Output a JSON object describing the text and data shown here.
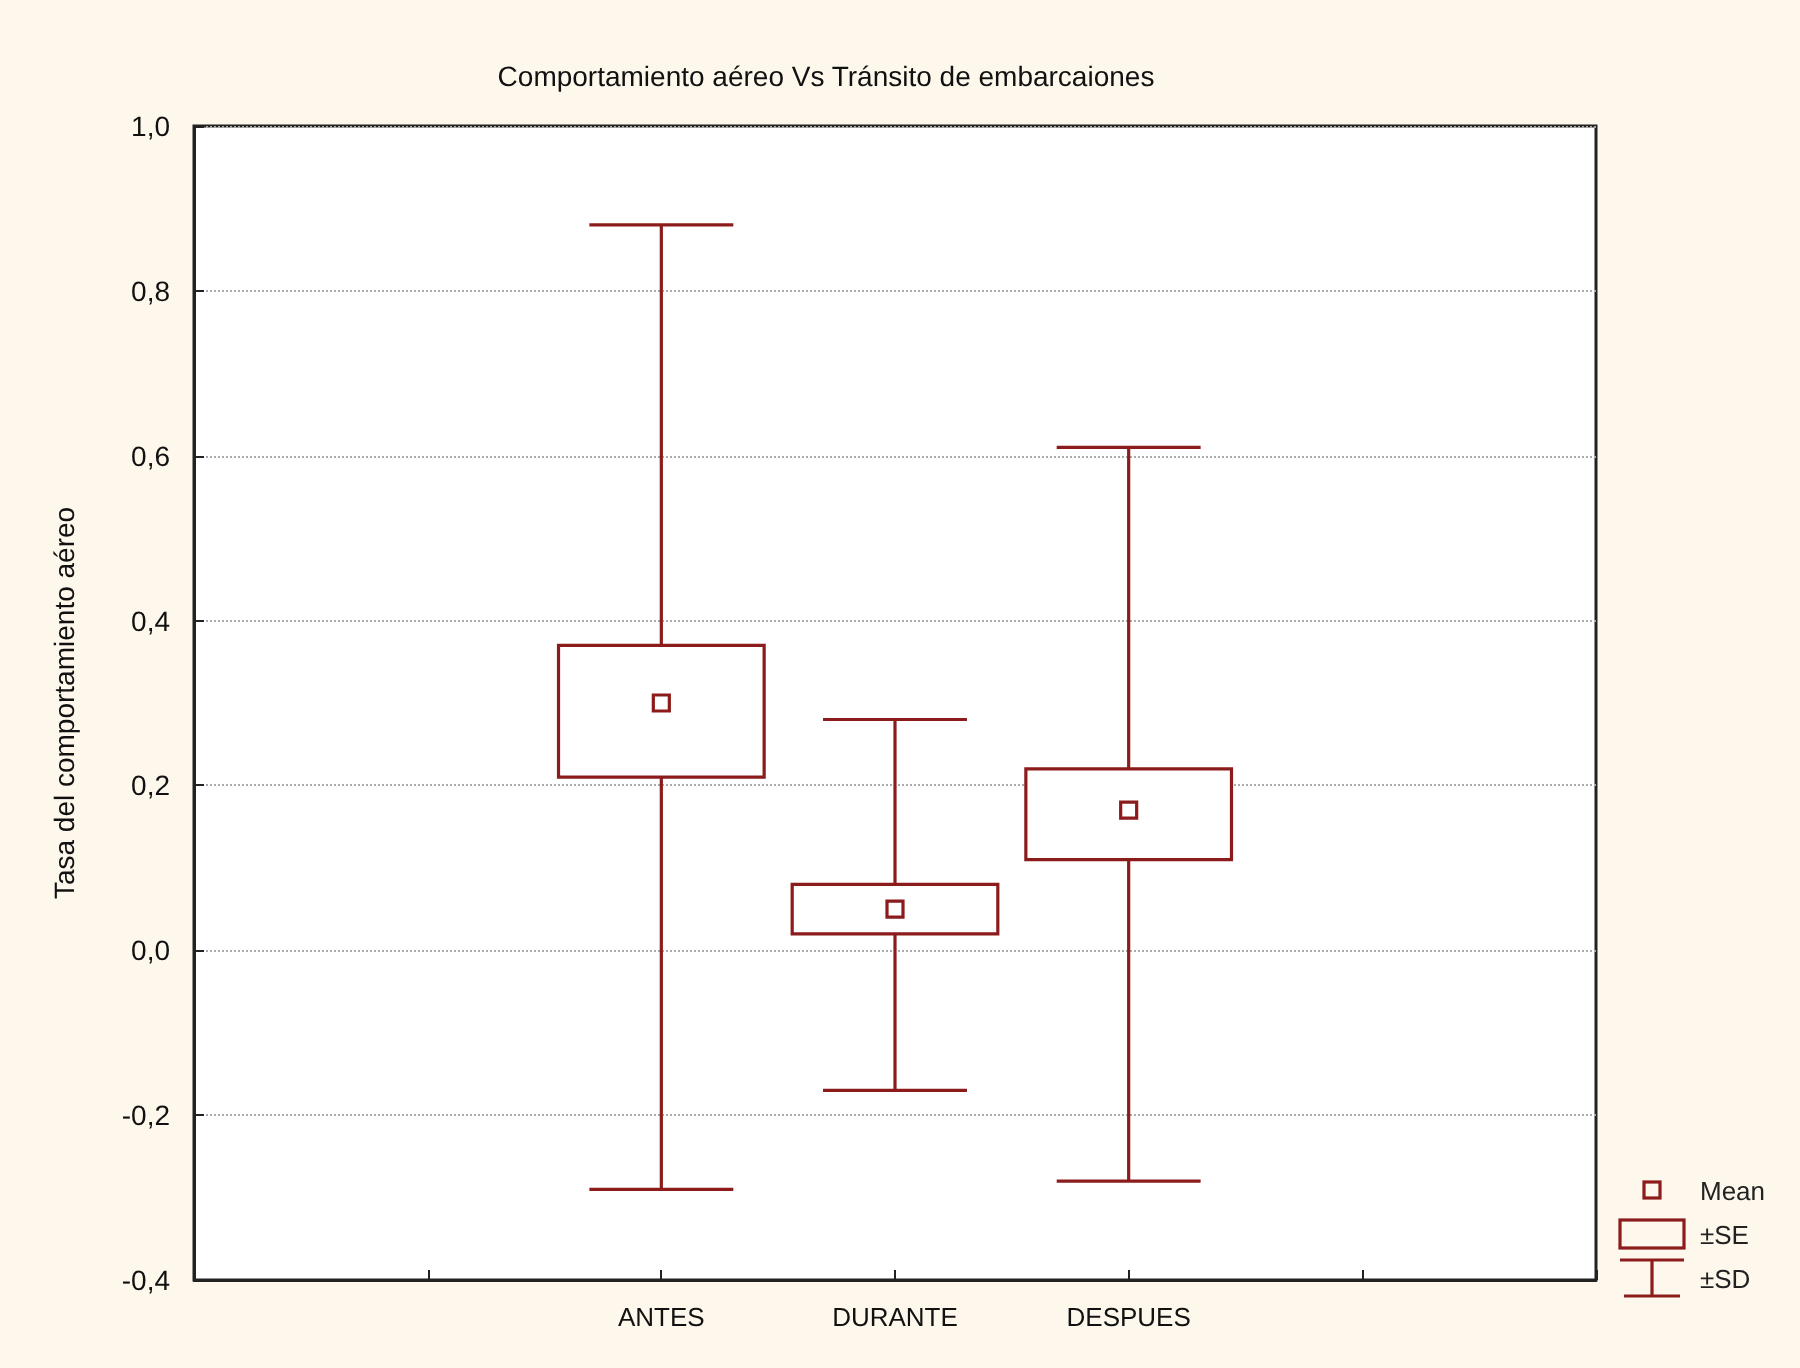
{
  "chart_data": {
    "type": "box",
    "title": "Comportamiento aéreo Vs Tránsito de embarcaiones",
    "ylabel": "Tasa del comportamiento aéreo",
    "categories": [
      null,
      null,
      "ANTES",
      "DURANTE",
      "DESPUES",
      null,
      null
    ],
    "boxes": [
      null,
      null,
      {
        "low": -0.29,
        "q1": 0.21,
        "median": 0.3,
        "q3": 0.37,
        "high": 0.88
      },
      {
        "low": -0.17,
        "q1": 0.02,
        "median": 0.05,
        "q3": 0.08,
        "high": 0.28
      },
      {
        "low": -0.28,
        "q1": 0.11,
        "median": 0.17,
        "q3": 0.22,
        "high": 0.61
      },
      null,
      null
    ],
    "color": "#8c1c1c",
    "ylim": [
      -0.4,
      1.0
    ],
    "yticks": [
      {
        "value": -0.4,
        "label": "-0,4"
      },
      {
        "value": -0.2,
        "label": "-0,2"
      },
      {
        "value": 0,
        "label": "0,0"
      },
      {
        "value": 0.2,
        "label": "0,2"
      },
      {
        "value": 0.4,
        "label": "0,4"
      },
      {
        "value": 0.6,
        "label": "0,6"
      },
      {
        "value": 0.8,
        "label": "0,8"
      },
      {
        "value": 1.0,
        "label": "1,0"
      }
    ],
    "grid": "y",
    "annotations": [
      "Mean",
      "±SE",
      "±SD"
    ]
  }
}
